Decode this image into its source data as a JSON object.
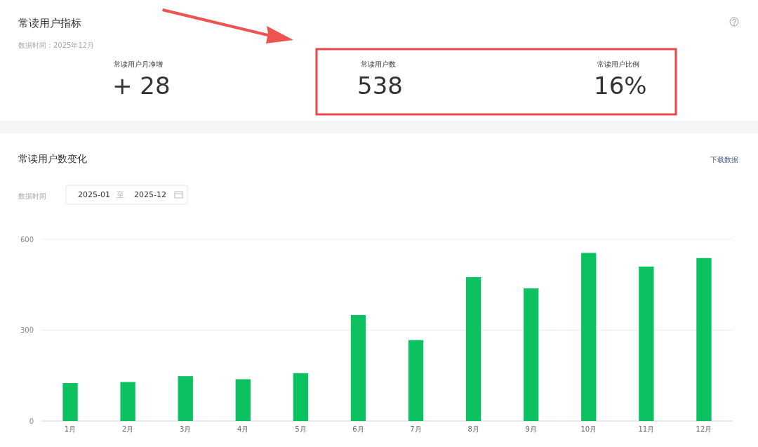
{
  "chart_data": {
    "type": "bar",
    "title": "常读用户数变化",
    "categories": [
      "1月",
      "2月",
      "3月",
      "4月",
      "5月",
      "6月",
      "7月",
      "8月",
      "9月",
      "10月",
      "11月",
      "12月"
    ],
    "values": [
      125,
      129,
      148,
      138,
      158,
      350,
      267,
      475,
      438,
      555,
      510,
      538
    ],
    "color": "#0bc160",
    "ylim": [
      0,
      600
    ],
    "yticks": [
      0,
      300,
      600
    ],
    "grid": "y",
    "annotations": [
      "常读用户指标",
      "数据时间：2025年12月",
      "常读用户月净增",
      "+ 28",
      "常读用户数",
      "538",
      "常读用户比例",
      "16%",
      "下载数据",
      "数据时间",
      "2025-01",
      "至",
      "2025-12"
    ]
  }
}
